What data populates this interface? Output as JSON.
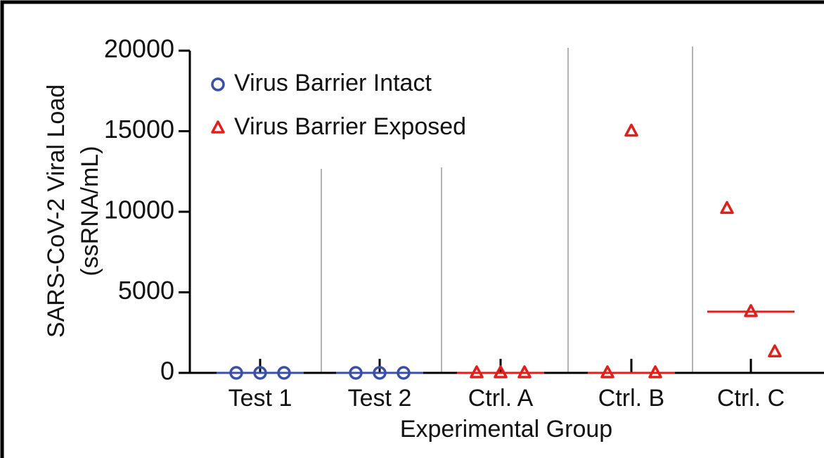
{
  "chart_data": {
    "type": "scatter",
    "xlabel": "Experimental Group",
    "ylabel": [
      "SARS-CoV-2 Viral Load",
      "(ssRNA/mL)"
    ],
    "categories": [
      "Test 1",
      "Test 2",
      "Ctrl. A",
      "Ctrl. B",
      "Ctrl. C"
    ],
    "series": [
      {
        "name": "Virus Barrier Intact",
        "color": "#3a4fa8",
        "marker": "circle",
        "values": [
          [
            0,
            0,
            0
          ],
          [
            0,
            0,
            0
          ],
          null,
          null,
          null
        ],
        "medians": [
          0,
          0,
          null,
          null,
          null
        ]
      },
      {
        "name": "Virus Barrier Exposed",
        "color": "#e0201b",
        "marker": "triangle",
        "values": [
          null,
          null,
          [
            0,
            0,
            0
          ],
          [
            0,
            15000,
            0
          ],
          [
            10200,
            3800,
            1300
          ]
        ],
        "medians": [
          null,
          null,
          0,
          0,
          3800
        ]
      }
    ],
    "ylim": [
      0,
      20000
    ],
    "yticks": [
      0,
      5000,
      10000,
      15000,
      20000
    ],
    "legend": "upper left"
  }
}
